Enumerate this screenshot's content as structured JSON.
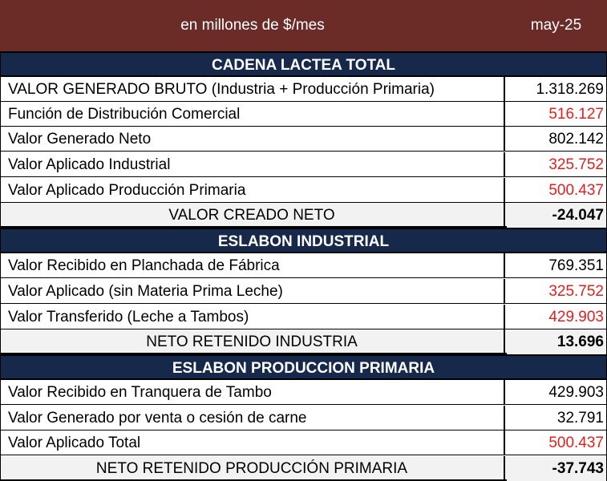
{
  "header": {
    "title": "en millones de $/mes",
    "period": "may-25"
  },
  "sections": [
    {
      "title": "CADENA  LACTEA  TOTAL",
      "rows": [
        {
          "label": "VALOR GENERADO BRUTO (Industria + Producción Primaria)",
          "value": "1.318.269",
          "negative": false
        },
        {
          "label": "Función de Distribución Comercial",
          "value": "516.127",
          "negative": true
        },
        {
          "label": "Valor Generado Neto",
          "value": "802.142",
          "negative": false
        },
        {
          "label": "Valor Aplicado Industrial",
          "value": "325.752",
          "negative": true
        },
        {
          "label": "Valor Aplicado Producción Primaria",
          "value": "500.437",
          "negative": true
        }
      ],
      "total": {
        "label": "VALOR CREADO NETO",
        "value": "-24.047"
      }
    },
    {
      "title": "ESLABON  INDUSTRIAL",
      "rows": [
        {
          "label": "Valor Recibido en Planchada de Fábrica",
          "value": "769.351",
          "negative": false
        },
        {
          "label": "Valor Aplicado (sin Materia Prima Leche)",
          "value": "325.752",
          "negative": true
        },
        {
          "label": "Valor Transferido (Leche a Tambos)",
          "value": "429.903",
          "negative": true
        }
      ],
      "total": {
        "label": "NETO RETENIDO INDUSTRIA",
        "value": "13.696"
      }
    },
    {
      "title": "ESLABON  PRODUCCION  PRIMARIA",
      "rows": [
        {
          "label": "Valor Recibido en Tranquera de Tambo",
          "value": "429.903",
          "negative": false
        },
        {
          "label": "Valor Generado por venta o cesión de carne",
          "value": "32.791",
          "negative": false
        },
        {
          "label": "Valor Aplicado  Total",
          "value": "500.437",
          "negative": true
        }
      ],
      "total": {
        "label": "NETO RETENIDO PRODUCCIÓN PRIMARIA",
        "value": "-37.743"
      }
    }
  ],
  "colors": {
    "header_bg": "#6b2b27",
    "section_bg": "#17294a",
    "negative_value": "#e02020",
    "total_bg": "#f2f2f2"
  }
}
